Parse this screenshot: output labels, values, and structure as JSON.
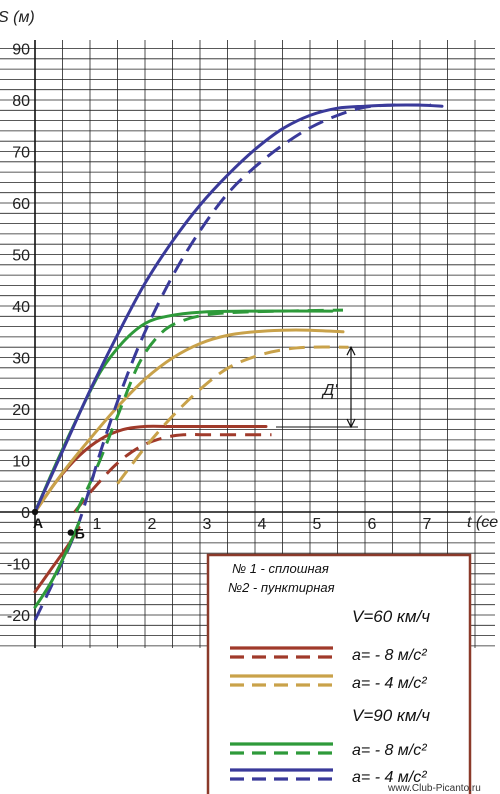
{
  "chart_data": {
    "type": "line",
    "title": "",
    "xlabel": "t (се",
    "ylabel": "S (м)",
    "xlim": [
      0,
      8
    ],
    "ylim": [
      -25,
      93
    ],
    "x_ticks": [
      "1",
      "2",
      "3",
      "4",
      "5",
      "6",
      "7"
    ],
    "y_ticks": [
      "90",
      "80",
      "70",
      "60",
      "50",
      "40",
      "30",
      "20",
      "10",
      "0",
      "-10",
      "-20"
    ],
    "grid": true,
    "points": [
      {
        "label": "А",
        "x": 0,
        "y": 0
      },
      {
        "label": "Б",
        "x": 0.65,
        "y": -4
      }
    ],
    "annotation": {
      "label": "Д'",
      "x": 5.8,
      "y_from": 16.5,
      "y_to": 32
    },
    "series": [
      {
        "name": "V=60 км/ч, а= - 8 м/с², № 1",
        "style": "solid",
        "color": "#a03a2a",
        "points": [
          [
            0,
            0
          ],
          [
            0.4,
            6.1
          ],
          [
            0.8,
            10.9
          ],
          [
            1.2,
            14.2
          ],
          [
            1.6,
            16.0
          ],
          [
            2.0,
            16.6
          ],
          [
            2.5,
            16.6
          ],
          [
            3.5,
            16.6
          ],
          [
            4.2,
            16.6
          ]
        ]
      },
      {
        "name": "V=60 км/ч, а= - 8 м/с², №2",
        "style": "dashed",
        "color": "#a03a2a",
        "points": [
          [
            0.72,
            0
          ],
          [
            1.1,
            5.0
          ],
          [
            1.5,
            9.5
          ],
          [
            1.9,
            12.6
          ],
          [
            2.3,
            14.3
          ],
          [
            2.7,
            15.0
          ],
          [
            3.2,
            15.0
          ],
          [
            4.3,
            15.0
          ]
        ]
      },
      {
        "name": "V=60 км/ч, а= - 4 м/с², № 1",
        "style": "solid",
        "color": "#c9a24a",
        "points": [
          [
            0,
            0
          ],
          [
            0.5,
            7.6
          ],
          [
            1.0,
            14.2
          ],
          [
            1.5,
            20.4
          ],
          [
            2.0,
            25.8
          ],
          [
            2.5,
            29.9
          ],
          [
            3.0,
            32.7
          ],
          [
            3.5,
            34.3
          ],
          [
            4.0,
            35.0
          ],
          [
            4.5,
            35.3
          ],
          [
            5.0,
            35.3
          ],
          [
            5.6,
            35.0
          ]
        ]
      },
      {
        "name": "V=60 км/ч, а= - 4 м/с², №2",
        "style": "dashed",
        "color": "#c9a24a",
        "points": [
          [
            1.5,
            5.5
          ],
          [
            2.0,
            12.5
          ],
          [
            2.5,
            18.6
          ],
          [
            3.0,
            23.8
          ],
          [
            3.5,
            27.9
          ],
          [
            4.0,
            30.2
          ],
          [
            4.5,
            31.5
          ],
          [
            5.0,
            32.0
          ],
          [
            5.7,
            32.0
          ]
        ]
      },
      {
        "name": "V=90 км/ч, а= - 8 м/с², № 1",
        "style": "solid",
        "color": "#2e9a3a",
        "points": [
          [
            0,
            0
          ],
          [
            0.4,
            9.8
          ],
          [
            0.8,
            19.0
          ],
          [
            1.2,
            27.4
          ],
          [
            1.6,
            33.0
          ],
          [
            2.0,
            36.6
          ],
          [
            2.4,
            38.0
          ],
          [
            3.0,
            38.8
          ],
          [
            4.0,
            39.0
          ],
          [
            5.4,
            39.0
          ]
        ]
      },
      {
        "name": "V=90 км/ч, а= - 8 м/с², №2",
        "style": "dashed",
        "color": "#2e9a3a",
        "points": [
          [
            0.75,
            0
          ],
          [
            1.1,
            8.0
          ],
          [
            1.5,
            18.6
          ],
          [
            1.9,
            29.0
          ],
          [
            2.3,
            34.8
          ],
          [
            2.7,
            37.2
          ],
          [
            3.2,
            38.4
          ],
          [
            4.0,
            38.9
          ],
          [
            5.6,
            39.2
          ]
        ]
      },
      {
        "name": "V=90 км/ч, а= - 4 м/с², № 1",
        "style": "solid",
        "color": "#3a3a9a",
        "points": [
          [
            0,
            0
          ],
          [
            0.5,
            11.8
          ],
          [
            1.0,
            23.6
          ],
          [
            1.5,
            34.4
          ],
          [
            2.0,
            44.4
          ],
          [
            2.5,
            52.6
          ],
          [
            3.0,
            59.6
          ],
          [
            3.5,
            65.4
          ],
          [
            4.0,
            70.4
          ],
          [
            4.5,
            74.4
          ],
          [
            5.0,
            77.0
          ],
          [
            5.5,
            78.4
          ],
          [
            6.0,
            78.8
          ],
          [
            6.5,
            79.0
          ],
          [
            7.0,
            79.0
          ],
          [
            7.4,
            78.8
          ]
        ]
      },
      {
        "name": "V=90 км/ч, а= - 4 м/с², №2",
        "style": "dashed",
        "color": "#3a3a9a",
        "points": [
          [
            0,
            -21
          ],
          [
            0.4,
            -12
          ],
          [
            0.8,
            -2
          ],
          [
            1.2,
            12
          ],
          [
            1.6,
            24.4
          ],
          [
            2.0,
            35.0
          ],
          [
            2.5,
            45.8
          ],
          [
            3.0,
            54.6
          ],
          [
            3.5,
            61.8
          ],
          [
            4.0,
            67.0
          ],
          [
            4.5,
            71.2
          ],
          [
            5.0,
            74.6
          ],
          [
            5.5,
            77.0
          ],
          [
            6.0,
            78.6
          ],
          [
            6.5,
            79.0
          ],
          [
            7.2,
            79.0
          ]
        ]
      },
      {
        "name": "extension 1",
        "style": "solid",
        "color": "#a03a2a",
        "points": [
          [
            0,
            -15.5
          ],
          [
            0.3,
            -11
          ],
          [
            0.6,
            -6.5
          ],
          [
            0.8,
            -3
          ]
        ]
      },
      {
        "name": "extension 2",
        "style": "solid",
        "color": "#2e9a3a",
        "points": [
          [
            0,
            -18.5
          ],
          [
            0.3,
            -13.5
          ],
          [
            0.6,
            -7.0
          ],
          [
            0.8,
            -2
          ]
        ]
      }
    ]
  },
  "legend": {
    "line1": "№ 1 - сплошная",
    "line2": "№2 - пунктирная",
    "v60": "V=60 км/ч",
    "v90": "V=90 км/ч",
    "a8": "а= - 8 м/с²",
    "a4": "а= - 4 м/с²",
    "a8b": "а= - 8 м/с²",
    "a4b": "а= - 4 м/с²",
    "border_color": "#8b3a2a"
  },
  "watermark": "www.Club-Picanto.ru"
}
